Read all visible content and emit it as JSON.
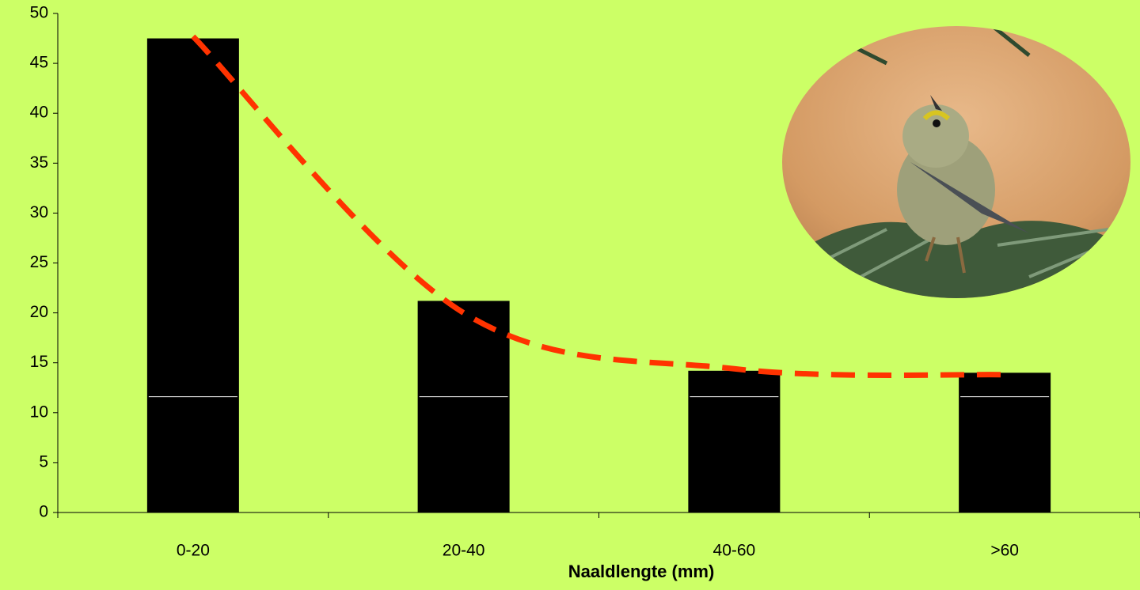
{
  "chart_data": {
    "type": "bar",
    "x_label": "Naaldlengte (mm)",
    "categories": [
      "0-20",
      "20-40",
      "40-60",
      ">60"
    ],
    "values": [
      47.5,
      21.2,
      14.2,
      14.0
    ],
    "color": "#000000",
    "marker_line": {
      "value": 11.6,
      "color": "#ffffff"
    },
    "trendline": {
      "color": "#ff3300",
      "values": [
        47.7,
        20.0,
        14.4,
        13.8
      ]
    },
    "ylim": [
      0,
      50
    ],
    "yticks": [
      0,
      5,
      10,
      15,
      20,
      25,
      30,
      35,
      40,
      45,
      50
    ]
  }
}
